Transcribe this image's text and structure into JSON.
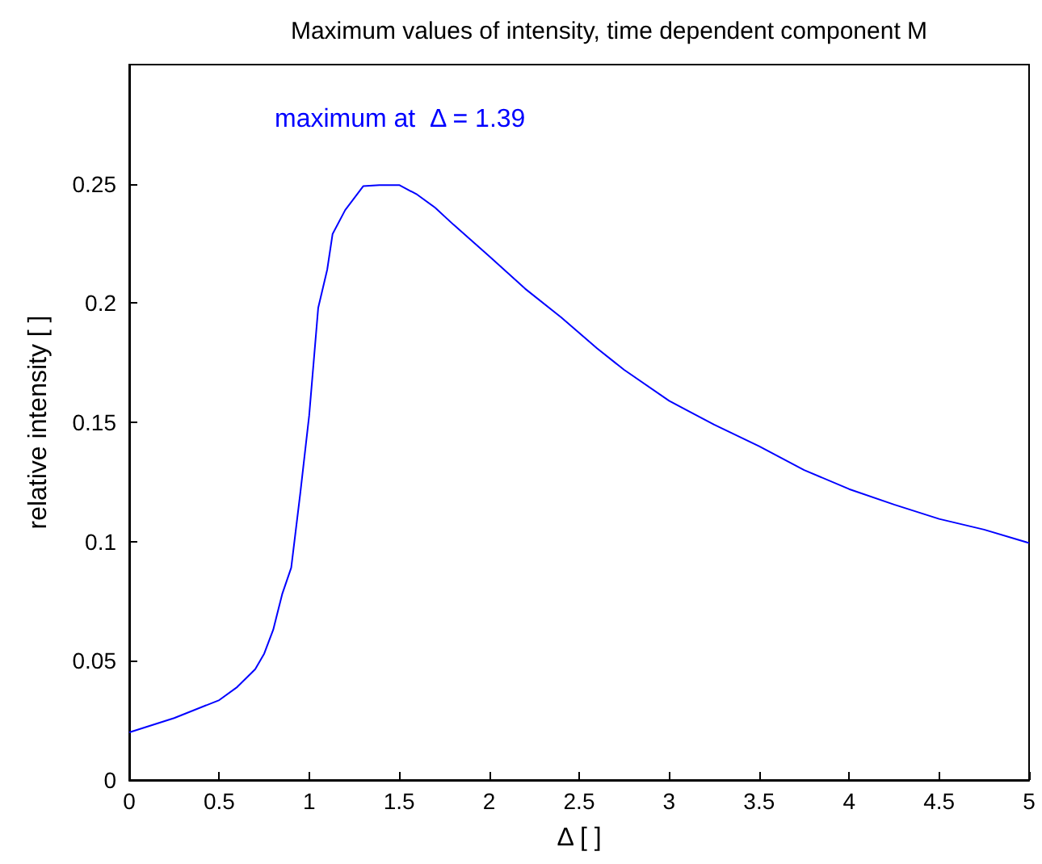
{
  "chart_data": {
    "type": "line",
    "title": "Maximum values of intensity, time dependent component M",
    "xlabel": "Δ [ ]",
    "ylabel": "relative intensity [ ]",
    "annotations": [
      "maximum at  Δ = 1.39"
    ],
    "series": [
      {
        "color": "#0000ff",
        "x": [
          0,
          0.25,
          0.5,
          0.6,
          0.7,
          0.75,
          0.8,
          0.85,
          0.9,
          0.95,
          1.0,
          1.05,
          1.1,
          1.13,
          1.2,
          1.3,
          1.39,
          1.5,
          1.6,
          1.7,
          1.8,
          2.0,
          2.2,
          2.4,
          2.6,
          2.75,
          3.0,
          3.25,
          3.5,
          3.75,
          4.0,
          4.25,
          4.5,
          4.75,
          5.0
        ],
        "values": [
          0.02,
          0.026,
          0.0335,
          0.039,
          0.0465,
          0.053,
          0.063,
          0.078,
          0.089,
          0.12,
          0.153,
          0.198,
          0.214,
          0.229,
          0.239,
          0.249,
          0.2495,
          0.2495,
          0.2455,
          0.24,
          0.233,
          0.2197,
          0.206,
          0.194,
          0.181,
          0.172,
          0.159,
          0.149,
          0.14,
          0.13,
          0.122,
          0.1155,
          0.1095,
          0.105,
          0.0994
        ]
      }
    ],
    "xlim": [
      0,
      5
    ],
    "xticks": [
      0,
      0.5,
      1,
      1.5,
      2,
      2.5,
      3,
      3.5,
      4,
      4.5,
      5
    ],
    "ylim": [
      0,
      0.3
    ],
    "yticks": [
      0,
      0.05,
      0.1,
      0.15,
      0.2,
      0.25
    ],
    "grid": false,
    "marker": "none",
    "line_style": "solid"
  }
}
